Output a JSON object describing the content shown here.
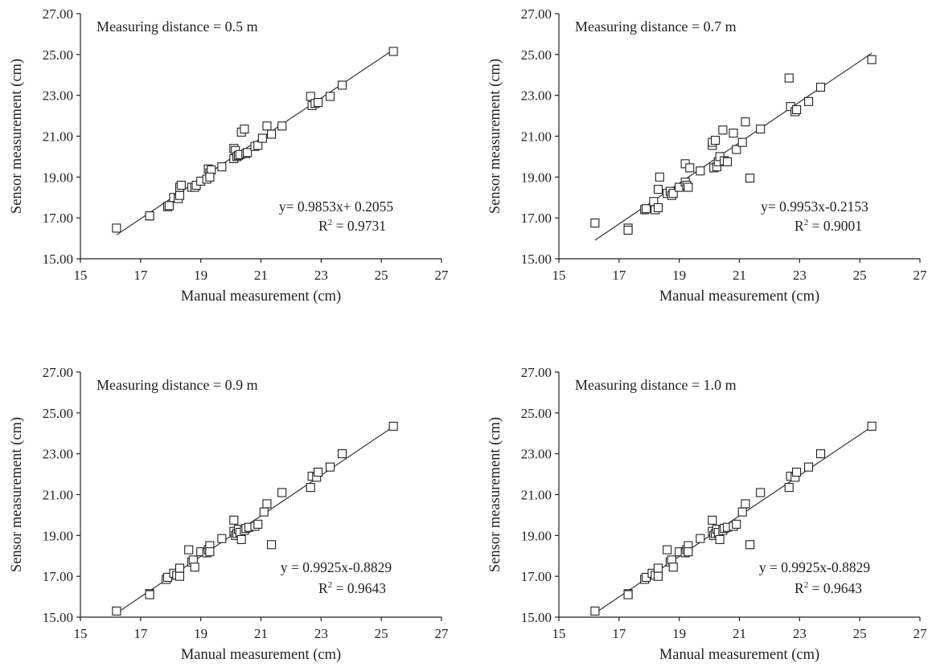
{
  "chart_data": [
    {
      "type": "scatter",
      "annotation": "Measuring distance = 0.5 m",
      "xlabel": "Manual measurement (cm)",
      "ylabel": "Sensor measurement (cm)",
      "xlim": [
        15,
        27
      ],
      "ylim": [
        15,
        27
      ],
      "x_ticks": [
        "15",
        "17",
        "19",
        "21",
        "23",
        "25",
        "27"
      ],
      "y_ticks": [
        "15.00",
        "17.00",
        "19.00",
        "21.00",
        "23.00",
        "25.00",
        "27.00"
      ],
      "equation": "y= 0.9853x+ 0.2055",
      "r2_prefix": "R",
      "r2_exp": "2",
      "r2_value": " = 0.9731",
      "fit": {
        "x0": 16.2,
        "x1": 25.4,
        "slope": 0.9853,
        "intercept": 0.2055
      },
      "points": [
        [
          16.2,
          16.5
        ],
        [
          17.3,
          17.1
        ],
        [
          17.3,
          17.1
        ],
        [
          17.9,
          17.55
        ],
        [
          17.95,
          17.6
        ],
        [
          18.1,
          18.0
        ],
        [
          18.25,
          17.95
        ],
        [
          18.3,
          18.1
        ],
        [
          18.3,
          18.5
        ],
        [
          18.35,
          18.6
        ],
        [
          18.7,
          18.5
        ],
        [
          18.8,
          18.5
        ],
        [
          18.85,
          18.6
        ],
        [
          19.0,
          18.8
        ],
        [
          19.2,
          18.9
        ],
        [
          19.25,
          19.4
        ],
        [
          19.3,
          19.2
        ],
        [
          19.35,
          19.35
        ],
        [
          19.3,
          19.0
        ],
        [
          19.7,
          19.5
        ],
        [
          20.1,
          19.9
        ],
        [
          20.1,
          20.4
        ],
        [
          20.15,
          20.3
        ],
        [
          20.2,
          20.0
        ],
        [
          20.25,
          20.05
        ],
        [
          20.3,
          20.1
        ],
        [
          20.35,
          21.2
        ],
        [
          20.45,
          21.35
        ],
        [
          20.5,
          20.15
        ],
        [
          20.55,
          20.2
        ],
        [
          20.8,
          20.5
        ],
        [
          20.9,
          20.55
        ],
        [
          21.05,
          20.9
        ],
        [
          21.2,
          21.5
        ],
        [
          21.35,
          21.1
        ],
        [
          21.7,
          21.5
        ],
        [
          22.65,
          22.95
        ],
        [
          22.7,
          22.5
        ],
        [
          22.8,
          22.6
        ],
        [
          22.9,
          22.65
        ],
        [
          23.3,
          22.95
        ],
        [
          23.7,
          23.5
        ],
        [
          25.4,
          25.15
        ]
      ]
    },
    {
      "type": "scatter",
      "annotation": "Measuring distance = 0.7 m",
      "xlabel": "Manual measurement (cm)",
      "ylabel": "Sensor measurement (cm)",
      "xlim": [
        15,
        27
      ],
      "ylim": [
        15,
        27
      ],
      "x_ticks": [
        "15",
        "17",
        "19",
        "21",
        "23",
        "25",
        "27"
      ],
      "y_ticks": [
        "15.00",
        "17.00",
        "19.00",
        "21.00",
        "23.00",
        "25.00",
        "27.00"
      ],
      "equation": "y= 0.9953x-0.2153",
      "r2_prefix": "R",
      "r2_exp": "2",
      "r2_value": " = 0.9001",
      "fit": {
        "x0": 16.2,
        "x1": 25.4,
        "slope": 0.9953,
        "intercept": -0.2153
      },
      "points": [
        [
          16.2,
          16.75
        ],
        [
          17.3,
          16.5
        ],
        [
          17.3,
          16.4
        ],
        [
          17.85,
          17.4
        ],
        [
          17.9,
          17.45
        ],
        [
          18.15,
          17.8
        ],
        [
          18.2,
          17.4
        ],
        [
          18.3,
          17.5
        ],
        [
          18.3,
          18.4
        ],
        [
          18.35,
          19.0
        ],
        [
          18.6,
          18.2
        ],
        [
          18.7,
          18.3
        ],
        [
          18.75,
          18.1
        ],
        [
          18.8,
          18.2
        ],
        [
          19.0,
          18.5
        ],
        [
          19.2,
          18.75
        ],
        [
          19.25,
          18.6
        ],
        [
          19.2,
          19.65
        ],
        [
          19.35,
          19.45
        ],
        [
          19.3,
          18.5
        ],
        [
          19.7,
          19.3
        ],
        [
          20.1,
          20.55
        ],
        [
          20.1,
          20.7
        ],
        [
          20.15,
          19.45
        ],
        [
          20.2,
          20.8
        ],
        [
          20.25,
          19.5
        ],
        [
          20.3,
          19.75
        ],
        [
          20.35,
          20.0
        ],
        [
          20.45,
          21.3
        ],
        [
          20.5,
          19.8
        ],
        [
          20.6,
          19.75
        ],
        [
          20.8,
          21.15
        ],
        [
          20.9,
          20.35
        ],
        [
          21.1,
          20.7
        ],
        [
          21.2,
          21.7
        ],
        [
          21.35,
          18.95
        ],
        [
          21.7,
          21.35
        ],
        [
          22.65,
          23.85
        ],
        [
          22.7,
          22.45
        ],
        [
          22.85,
          22.2
        ],
        [
          22.9,
          22.3
        ],
        [
          23.3,
          22.7
        ],
        [
          23.7,
          23.4
        ],
        [
          25.4,
          24.75
        ]
      ]
    },
    {
      "type": "scatter",
      "annotation": "Measuring distance = 0.9 m",
      "xlabel": "Manual measurement (cm)",
      "ylabel": "Sensor measurement (cm)",
      "xlim": [
        15,
        27
      ],
      "ylim": [
        15,
        27
      ],
      "x_ticks": [
        "15",
        "17",
        "19",
        "21",
        "23",
        "25",
        "27"
      ],
      "y_ticks": [
        "15.00",
        "17.00",
        "19.00",
        "21.00",
        "23.00",
        "25.00",
        "27.00"
      ],
      "equation": "y = 0.9925x-0.8829",
      "r2_prefix": "R",
      "r2_exp": "2",
      "r2_value": " = 0.9643",
      "fit": {
        "x0": 16.2,
        "x1": 25.4,
        "slope": 0.9925,
        "intercept": -0.8829
      },
      "points": [
        [
          16.2,
          15.3
        ],
        [
          17.3,
          16.15
        ],
        [
          17.3,
          16.1
        ],
        [
          17.85,
          16.85
        ],
        [
          17.9,
          16.95
        ],
        [
          18.1,
          17.15
        ],
        [
          18.2,
          17.05
        ],
        [
          18.3,
          17.4
        ],
        [
          18.3,
          17.0
        ],
        [
          18.6,
          18.3
        ],
        [
          18.7,
          17.7
        ],
        [
          18.75,
          17.8
        ],
        [
          18.8,
          17.45
        ],
        [
          19.0,
          18.2
        ],
        [
          19.2,
          18.15
        ],
        [
          19.25,
          18.3
        ],
        [
          19.3,
          18.5
        ],
        [
          19.3,
          18.2
        ],
        [
          19.7,
          18.85
        ],
        [
          20.1,
          19.75
        ],
        [
          20.1,
          19.2
        ],
        [
          20.15,
          19.0
        ],
        [
          20.2,
          19.1
        ],
        [
          20.25,
          19.3
        ],
        [
          20.3,
          19.15
        ],
        [
          20.35,
          18.8
        ],
        [
          20.45,
          19.25
        ],
        [
          20.5,
          19.35
        ],
        [
          20.6,
          19.4
        ],
        [
          20.8,
          19.45
        ],
        [
          20.9,
          19.55
        ],
        [
          21.1,
          20.15
        ],
        [
          21.2,
          20.55
        ],
        [
          21.35,
          18.55
        ],
        [
          21.7,
          21.1
        ],
        [
          22.65,
          21.35
        ],
        [
          22.7,
          21.9
        ],
        [
          22.85,
          21.85
        ],
        [
          22.9,
          22.1
        ],
        [
          23.3,
          22.35
        ],
        [
          23.7,
          23.0
        ],
        [
          25.4,
          24.35
        ]
      ]
    },
    {
      "type": "scatter",
      "annotation": "Measuring distance = 1.0 m",
      "xlabel": "Manual measurement (cm)",
      "ylabel": "Sensor measurement (cm)",
      "xlim": [
        15,
        27
      ],
      "ylim": [
        15,
        27
      ],
      "x_ticks": [
        "15",
        "17",
        "19",
        "21",
        "23",
        "25",
        "27"
      ],
      "y_ticks": [
        "15.00",
        "17.00",
        "19.00",
        "21.00",
        "23.00",
        "25.00",
        "27.00"
      ],
      "equation": "y = 0.9925x-0.8829",
      "r2_prefix": "R",
      "r2_exp": "2",
      "r2_value": " = 0.9643",
      "fit": {
        "x0": 16.2,
        "x1": 25.4,
        "slope": 0.9925,
        "intercept": -0.8829
      },
      "points": [
        [
          16.2,
          15.3
        ],
        [
          17.3,
          16.15
        ],
        [
          17.3,
          16.1
        ],
        [
          17.85,
          16.85
        ],
        [
          17.9,
          16.95
        ],
        [
          18.1,
          17.15
        ],
        [
          18.2,
          17.05
        ],
        [
          18.3,
          17.4
        ],
        [
          18.3,
          17.0
        ],
        [
          18.6,
          18.3
        ],
        [
          18.7,
          17.7
        ],
        [
          18.75,
          17.8
        ],
        [
          18.8,
          17.45
        ],
        [
          19.0,
          18.2
        ],
        [
          19.2,
          18.15
        ],
        [
          19.25,
          18.3
        ],
        [
          19.3,
          18.5
        ],
        [
          19.3,
          18.2
        ],
        [
          19.7,
          18.85
        ],
        [
          20.1,
          19.75
        ],
        [
          20.1,
          19.2
        ],
        [
          20.15,
          19.0
        ],
        [
          20.2,
          19.1
        ],
        [
          20.25,
          19.3
        ],
        [
          20.3,
          19.15
        ],
        [
          20.35,
          18.8
        ],
        [
          20.45,
          19.25
        ],
        [
          20.5,
          19.35
        ],
        [
          20.6,
          19.4
        ],
        [
          20.8,
          19.45
        ],
        [
          20.9,
          19.55
        ],
        [
          21.1,
          20.15
        ],
        [
          21.2,
          20.55
        ],
        [
          21.35,
          18.55
        ],
        [
          21.7,
          21.1
        ],
        [
          22.65,
          21.35
        ],
        [
          22.7,
          21.9
        ],
        [
          22.85,
          21.85
        ],
        [
          22.9,
          22.1
        ],
        [
          23.3,
          22.35
        ],
        [
          23.7,
          23.0
        ],
        [
          25.4,
          24.35
        ]
      ]
    }
  ]
}
